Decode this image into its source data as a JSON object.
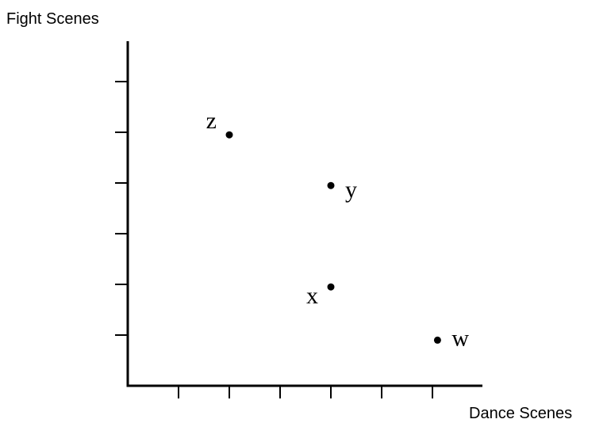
{
  "chart_data": {
    "type": "scatter",
    "title": "",
    "xlabel": "Dance Scenes",
    "ylabel": "Fight Scenes",
    "xlim": [
      0,
      7
    ],
    "ylim": [
      0,
      6
    ],
    "x_ticks": [
      1,
      2,
      3,
      4,
      5,
      6
    ],
    "y_ticks": [
      1,
      2,
      3,
      4,
      5,
      6
    ],
    "tick_labels_shown": false,
    "grid": false,
    "legend": "none",
    "points": [
      {
        "label": "z",
        "x": 2,
        "y": 4.95,
        "label_side": "left"
      },
      {
        "label": "y",
        "x": 4,
        "y": 3.95,
        "label_side": "right"
      },
      {
        "label": "x",
        "x": 4,
        "y": 1.95,
        "label_side": "left"
      },
      {
        "label": "w",
        "x": 6.1,
        "y": 0.9,
        "label_side": "right"
      }
    ]
  }
}
